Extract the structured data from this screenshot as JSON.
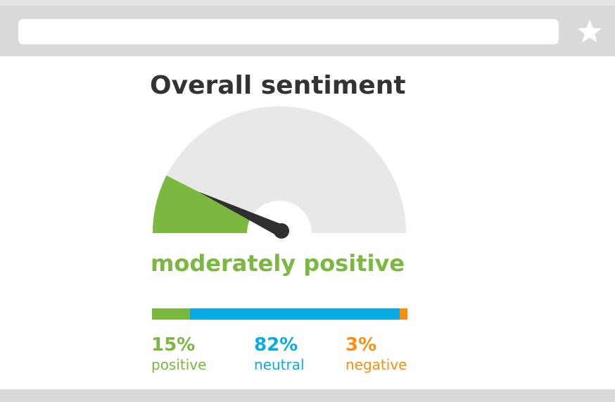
{
  "browser": {
    "address_value": "",
    "bookmark_icon": "star-icon"
  },
  "widget": {
    "title": "Overall sentiment",
    "verdict": "moderately positive",
    "gauge_value_fraction": 0.15,
    "stats": [
      {
        "key": "positive",
        "value": "15%",
        "label": "positive",
        "fraction": 0.15,
        "color": "#7ab83f"
      },
      {
        "key": "neutral",
        "value": "82%",
        "label": "neutral",
        "fraction": 0.82,
        "color": "#0aabe4"
      },
      {
        "key": "negative",
        "value": "3%",
        "label": "negative",
        "fraction": 0.03,
        "color": "#f7900e"
      }
    ]
  },
  "colors": {
    "chrome": "#d9d9d9",
    "gauge_track": "#e8e8e8",
    "needle": "#2f2f2f",
    "title_text": "#333333"
  }
}
